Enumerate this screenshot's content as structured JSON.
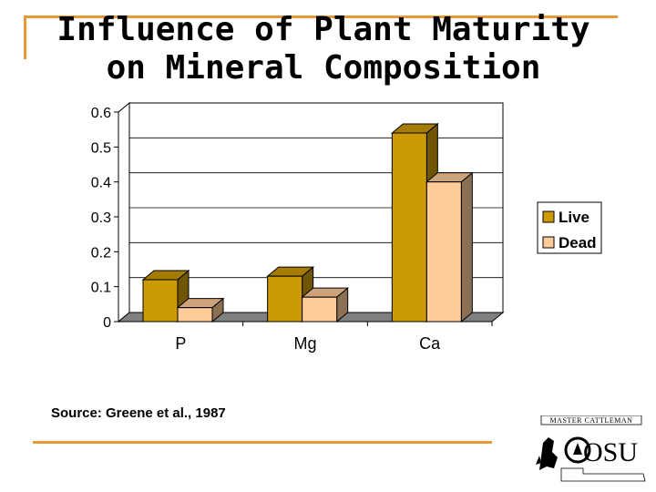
{
  "title": "Influence of Plant Maturity on Mineral Composition",
  "source": "Source: Greene et al., 1987",
  "colors": {
    "live": "#cc9a06",
    "dead": "#ffcc99",
    "accent": "#e8973a"
  },
  "logo": {
    "top_text": "MASTER CATTLEMAN",
    "main_text": "OSU"
  },
  "chart_data": {
    "type": "bar",
    "title": "Influence of Plant Maturity on Mineral Composition",
    "xlabel": "",
    "ylabel": "",
    "categories": [
      "P",
      "Mg",
      "Ca"
    ],
    "series": [
      {
        "name": "Live",
        "values": [
          0.12,
          0.13,
          0.54
        ]
      },
      {
        "name": "Dead",
        "values": [
          0.04,
          0.07,
          0.4
        ]
      }
    ],
    "ylim": [
      0,
      0.6
    ],
    "yticks": [
      0,
      0.1,
      0.2,
      0.3,
      0.4,
      0.5,
      0.6
    ],
    "ytick_labels": [
      "0",
      "0.1",
      "0.2",
      "0.3",
      "0.4",
      "0.5",
      "0.6"
    ],
    "legend": "right",
    "grid": true,
    "style": "3d"
  }
}
